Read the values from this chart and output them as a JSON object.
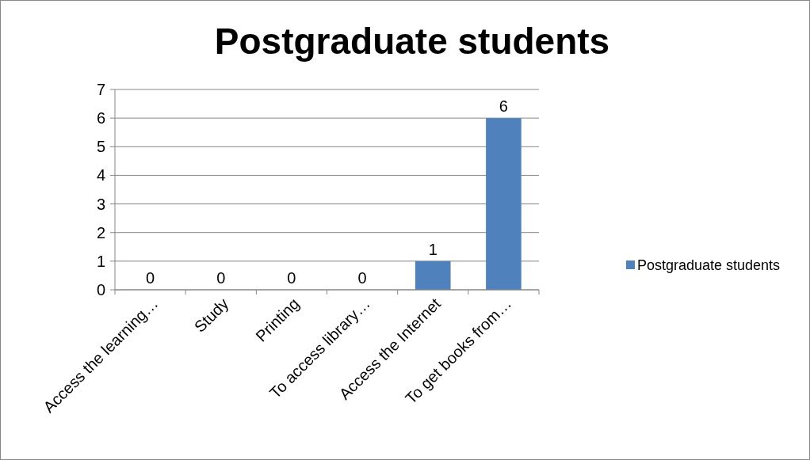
{
  "chart_data": {
    "type": "bar",
    "title": "Postgraduate students",
    "categories": [
      "Access the learning…",
      "Study",
      "Printing",
      "To access library…",
      "Access the Internet",
      "To get books from…"
    ],
    "series": [
      {
        "name": "Postgraduate students",
        "color": "#4f81bd",
        "values": [
          0,
          0,
          0,
          0,
          1,
          6
        ]
      }
    ],
    "ylim": [
      0,
      7
    ],
    "yticks": [
      0,
      1,
      2,
      3,
      4,
      5,
      6,
      7
    ],
    "grid": "y",
    "legend": "right",
    "data_labels": true
  }
}
